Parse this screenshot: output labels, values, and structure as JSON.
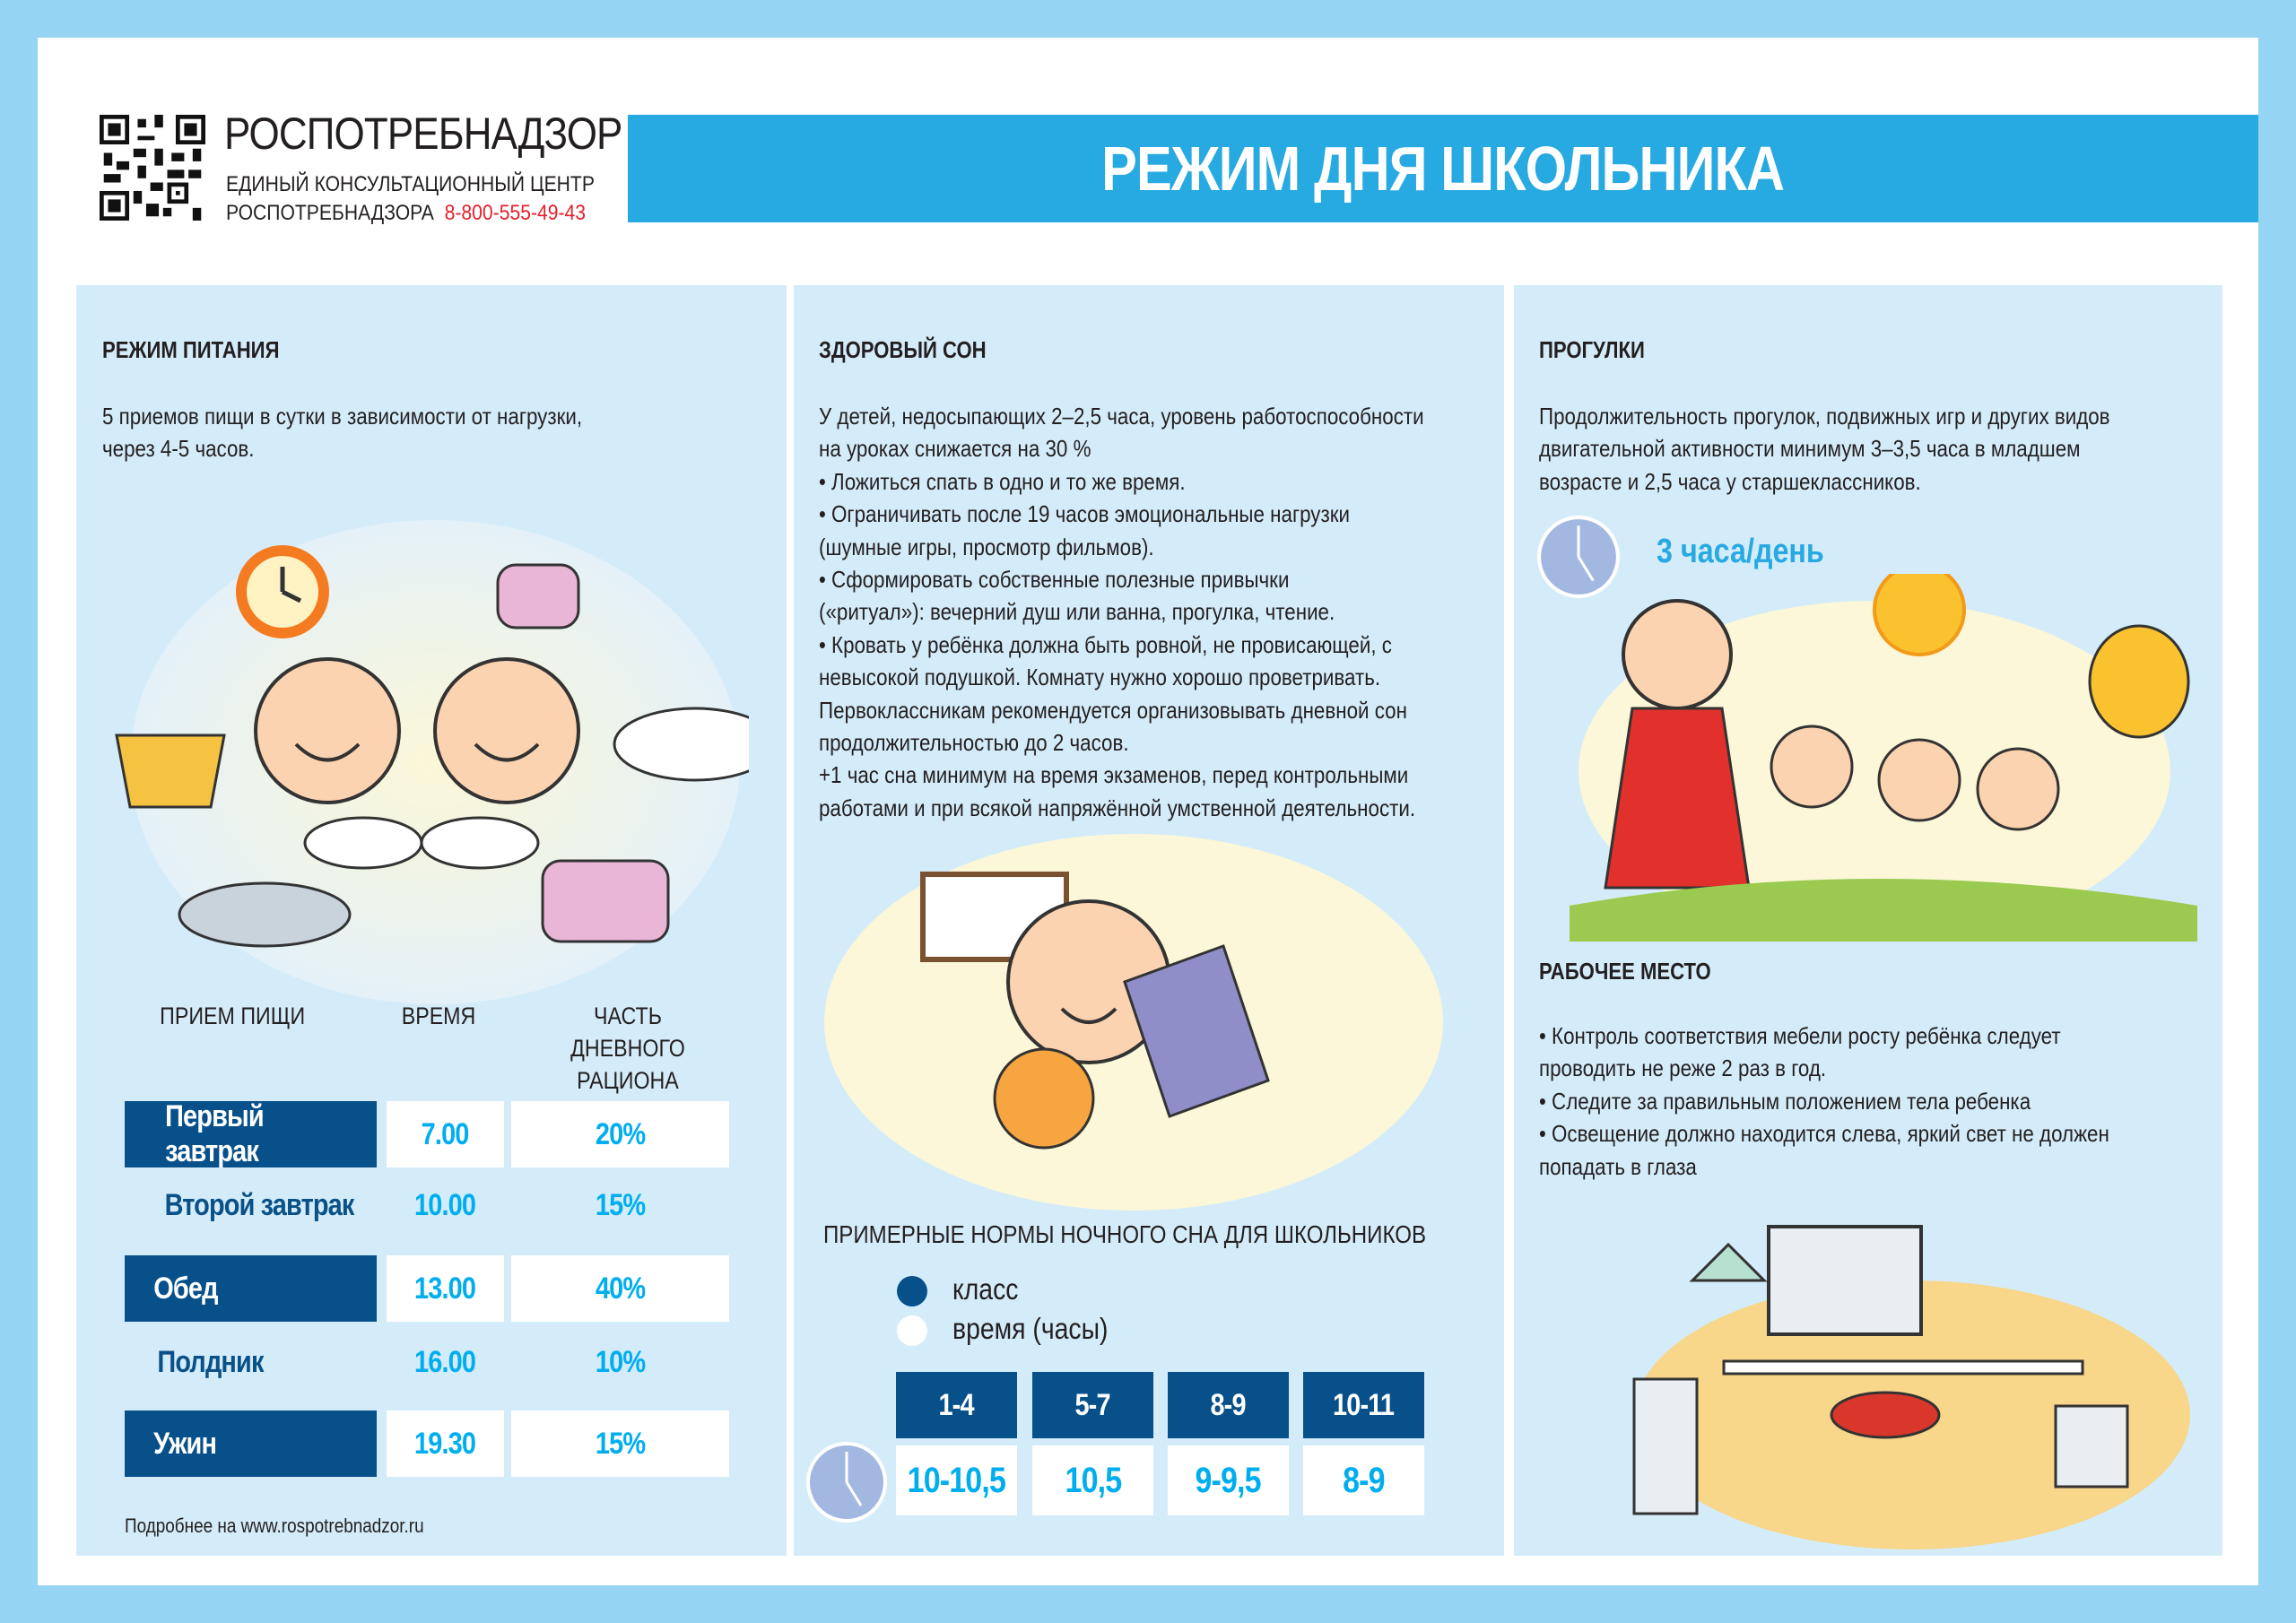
{
  "header": {
    "org_name": "РОСПОТРЕБНАДЗОР",
    "center_line1": "ЕДИНЫЙ КОНСУЛЬТАЦИОННЫЙ ЦЕНТР",
    "center_line2": "РОСПОТРЕБНАДЗОРА",
    "phone": "8-800-555-49-43",
    "title": "РЕЖИМ ДНЯ ШКОЛЬНИКА",
    "colors": {
      "banner": "#27a9e1",
      "phone": "#e4202c",
      "frame": "#95d4f2",
      "panel": "#d4ecfa"
    }
  },
  "nutrition": {
    "heading": "РЕЖИМ ПИТАНИЯ",
    "lines": [
      "5 приемов пищи в сутки в зависимости от нагрузки,",
      "через 4-5 часов."
    ],
    "columns": [
      "ПРИЕМ ПИЩИ",
      "ВРЕМЯ",
      "ЧАСТЬ ДНЕВНОГО РАЦИОНА"
    ],
    "rows": [
      {
        "meal": "Первый завтрак",
        "time": "7.00",
        "share": "20%",
        "highlighted": true
      },
      {
        "meal": "Второй завтрак",
        "time": "10.00",
        "share": "15%",
        "highlighted": false
      },
      {
        "meal": "Обед",
        "time": "13.00",
        "share": "40%",
        "highlighted": true
      },
      {
        "meal": "Полдник",
        "time": "16.00",
        "share": "10%",
        "highlighted": false
      },
      {
        "meal": "Ужин",
        "time": "19.30",
        "share": "15%",
        "highlighted": true
      }
    ],
    "footer": "Подробнее на www.rospotrebnadzor.ru",
    "colors": {
      "dark": "#08508a",
      "value": "#00aeef"
    }
  },
  "sleep": {
    "heading": "ЗДОРОВЫЙ СОН",
    "lines": [
      "У детей, недосыпающих 2–2,5 часа, уровень работоспособности",
      "на уроках снижается на 30 %",
      "•      Ложиться спать в одно и то же время.",
      "•      Ограничивать после 19 часов эмоциональные нагрузки",
      "(шумные игры, просмотр фильмов).",
      "•      Сформировать собственные полезные привычки",
      "(«ритуал»): вечерний душ или ванна, прогулка, чтение.",
      "•      Кровать у ребёнка должна быть ровной, не провисающей, с",
      "невысокой подушкой. Комнату нужно хорошо проветривать.",
      "Первоклассникам рекомендуется организовывать дневной сон",
      "продолжительностью до 2 часов.",
      "+1 час сна минимум на время экзаменов, перед контрольными",
      "работами и при всякой напряжённой умственной деятельности."
    ],
    "norms_title": "ПРИМЕРНЫЕ НОРМЫ НОЧНОГО СНА ДЛЯ ШКОЛЬНИКОВ",
    "legend": [
      {
        "label": "класс",
        "color": "#08508a"
      },
      {
        "label": "время (часы)",
        "color": "#ffffff"
      }
    ],
    "norms": [
      {
        "grade": "1-4",
        "hours": "10-10,5"
      },
      {
        "grade": "5-7",
        "hours": "10,5"
      },
      {
        "grade": "8-9",
        "hours": "9-9,5"
      },
      {
        "grade": "10-11",
        "hours": "8-9"
      }
    ]
  },
  "walks": {
    "heading": "ПРОГУЛКИ",
    "lines": [
      "Продолжительность прогулок, подвижных игр и других видов",
      "двигательной активности минимум 3–3,5 часа в младшем",
      "возрасте и 2,5 часа у старшеклассников."
    ],
    "badge": "3 часа/день"
  },
  "workplace": {
    "heading": "РАБОЧЕЕ МЕСТО",
    "lines": [
      "•      Контроль соответствия мебели росту ребёнка следует",
      "проводить не реже 2 раз в год.",
      "•      Следите за правильным положением тела ребенка",
      "•      Освещение должно находится слева, яркий свет не должен",
      "попадать в глаза"
    ]
  }
}
